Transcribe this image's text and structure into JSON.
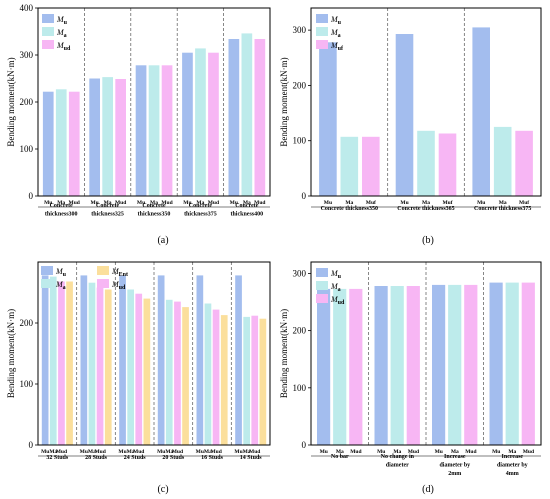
{
  "colors": {
    "Mu": "#a3bdee",
    "Ma": "#bdebeb",
    "Mud": "#f7b6f4",
    "Mud_c": "#f7b6f4",
    "MEnt": "#fbdf9c"
  },
  "chart_data": [
    {
      "type": "bar",
      "caption": "(a)",
      "ylabel": "Bending moment(kN·m)",
      "ylim": [
        0,
        400
      ],
      "yticks": [
        0,
        100,
        200,
        300,
        400
      ],
      "legend": [
        {
          "key": "Mu",
          "base": "M",
          "sub": "u"
        },
        {
          "key": "Ma",
          "base": "M",
          "sub": "a"
        },
        {
          "key": "Mud",
          "base": "M",
          "sub": "ud"
        }
      ],
      "legend_columns": 1,
      "groups": [
        {
          "label": [
            "Concrete",
            "thickness300"
          ],
          "bars": [
            {
              "key": "Mu",
              "tick": "Mu",
              "value": 222
            },
            {
              "key": "Ma",
              "tick": "Ma",
              "value": 227
            },
            {
              "key": "Mud",
              "tick": "Mud",
              "value": 222
            }
          ]
        },
        {
          "label": [
            "Concrete",
            "thickness325"
          ],
          "bars": [
            {
              "key": "Mu",
              "tick": "Mu",
              "value": 250
            },
            {
              "key": "Ma",
              "tick": "Ma",
              "value": 253
            },
            {
              "key": "Mud",
              "tick": "Mud",
              "value": 249
            }
          ]
        },
        {
          "label": [
            "Concrete",
            "thickness350"
          ],
          "bars": [
            {
              "key": "Mu",
              "tick": "Mu",
              "value": 278
            },
            {
              "key": "Ma",
              "tick": "Ma",
              "value": 278
            },
            {
              "key": "Mud",
              "tick": "Mud",
              "value": 278
            }
          ]
        },
        {
          "label": [
            "Concrete",
            "thickness375"
          ],
          "bars": [
            {
              "key": "Mu",
              "tick": "Mu",
              "value": 305
            },
            {
              "key": "Ma",
              "tick": "Ma",
              "value": 314
            },
            {
              "key": "Mud",
              "tick": "Mud",
              "value": 305
            }
          ]
        },
        {
          "label": [
            "Concrete",
            "thickness400"
          ],
          "bars": [
            {
              "key": "Mu",
              "tick": "Mu",
              "value": 334
            },
            {
              "key": "Ma",
              "tick": "Ma",
              "value": 346
            },
            {
              "key": "Mud",
              "tick": "Mud",
              "value": 334
            }
          ]
        }
      ]
    },
    {
      "type": "bar",
      "caption": "(b)",
      "ylabel": "Bending moment(kN·m)",
      "ylim": [
        0,
        340
      ],
      "yticks": [
        0,
        100,
        200,
        300
      ],
      "legend": [
        {
          "key": "Mu",
          "base": "M",
          "sub": "u"
        },
        {
          "key": "Ma",
          "base": "M",
          "sub": "a"
        },
        {
          "key": "Mud",
          "base": "M",
          "sub": "uf"
        }
      ],
      "legend_columns": 1,
      "groups": [
        {
          "label": [
            "Concrete thickness350"
          ],
          "bars": [
            {
              "key": "Mu",
              "tick": "Mu",
              "value": 278
            },
            {
              "key": "Ma",
              "tick": "Ma",
              "value": 107
            },
            {
              "key": "Mud",
              "tick": "Muf",
              "value": 107
            }
          ]
        },
        {
          "label": [
            "Concrete thickness365"
          ],
          "bars": [
            {
              "key": "Mu",
              "tick": "Mu",
              "value": 293
            },
            {
              "key": "Ma",
              "tick": "Ma",
              "value": 118
            },
            {
              "key": "Mud",
              "tick": "Muf",
              "value": 113
            }
          ]
        },
        {
          "label": [
            "Concrete thickness375"
          ],
          "bars": [
            {
              "key": "Mu",
              "tick": "Mu",
              "value": 305
            },
            {
              "key": "Ma",
              "tick": "Ma",
              "value": 125
            },
            {
              "key": "Mud",
              "tick": "Muf",
              "value": 118
            }
          ]
        }
      ]
    },
    {
      "type": "bar",
      "caption": "(c)",
      "ylabel": "Bending moment(kN·m)",
      "ylim": [
        0,
        300
      ],
      "yticks": [
        0,
        100,
        200
      ],
      "legend": [
        {
          "key": "Mu",
          "base": "M",
          "sub": "u"
        },
        {
          "key": "MEnt",
          "base": "M",
          "sub": "Ent"
        },
        {
          "key": "Ma",
          "base": "M",
          "sub": "a"
        },
        {
          "key": "Mud",
          "base": "M",
          "sub": "ud"
        }
      ],
      "legend_columns": 2,
      "groups": [
        {
          "label": [
            "32 Studs"
          ],
          "bars": [
            {
              "key": "Mu",
              "tick": "Mu",
              "value": 278
            },
            {
              "key": "Ma",
              "tick": "Ma",
              "value": 276
            },
            {
              "key": "Mud",
              "tick": "Mud",
              "value": 268
            },
            {
              "key": "MEnt",
              "tick": "",
              "value": 268
            }
          ]
        },
        {
          "label": [
            "28 Studs"
          ],
          "bars": [
            {
              "key": "Mu",
              "tick": "Mu",
              "value": 278
            },
            {
              "key": "Ma",
              "tick": "Ma",
              "value": 266
            },
            {
              "key": "Mud",
              "tick": "Mud",
              "value": 258
            },
            {
              "key": "MEnt",
              "tick": "",
              "value": 255
            }
          ]
        },
        {
          "label": [
            "24 Studs"
          ],
          "bars": [
            {
              "key": "Mu",
              "tick": "Mu",
              "value": 278
            },
            {
              "key": "Ma",
              "tick": "Ma",
              "value": 255
            },
            {
              "key": "Mud",
              "tick": "Mud",
              "value": 248
            },
            {
              "key": "MEnt",
              "tick": "",
              "value": 240
            }
          ]
        },
        {
          "label": [
            "20 Studs"
          ],
          "bars": [
            {
              "key": "Mu",
              "tick": "Mu",
              "value": 278
            },
            {
              "key": "Ma",
              "tick": "Ma",
              "value": 238
            },
            {
              "key": "Mud",
              "tick": "Mud",
              "value": 235
            },
            {
              "key": "MEnt",
              "tick": "",
              "value": 226
            }
          ]
        },
        {
          "label": [
            "16 Studs"
          ],
          "bars": [
            {
              "key": "Mu",
              "tick": "Mu",
              "value": 278
            },
            {
              "key": "Ma",
              "tick": "Ma",
              "value": 232
            },
            {
              "key": "Mud",
              "tick": "Mud",
              "value": 222
            },
            {
              "key": "MEnt",
              "tick": "",
              "value": 213
            }
          ]
        },
        {
          "label": [
            "14 Studs"
          ],
          "bars": [
            {
              "key": "Mu",
              "tick": "Mu",
              "value": 278
            },
            {
              "key": "Ma",
              "tick": "Ma",
              "value": 210
            },
            {
              "key": "Mud",
              "tick": "Mud",
              "value": 212
            },
            {
              "key": "MEnt",
              "tick": "",
              "value": 207
            }
          ]
        }
      ]
    },
    {
      "type": "bar",
      "caption": "(d)",
      "ylabel": "Bending moment(kN·m)",
      "ylim": [
        0,
        320
      ],
      "yticks": [
        0,
        100,
        200,
        300
      ],
      "legend": [
        {
          "key": "Mu",
          "base": "M",
          "sub": "u"
        },
        {
          "key": "Ma",
          "base": "M",
          "sub": "a"
        },
        {
          "key": "Mud",
          "base": "M",
          "sub": "ud"
        }
      ],
      "legend_columns": 1,
      "groups": [
        {
          "label": [
            "No bar"
          ],
          "bars": [
            {
              "key": "Mu",
              "tick": "Mu",
              "value": 273
            },
            {
              "key": "Ma",
              "tick": "Ma",
              "value": 273
            },
            {
              "key": "Mud",
              "tick": "Mud",
              "value": 273
            }
          ]
        },
        {
          "label": [
            "No change in",
            "diameter"
          ],
          "bars": [
            {
              "key": "Mu",
              "tick": "Mu",
              "value": 278
            },
            {
              "key": "Ma",
              "tick": "Ma",
              "value": 278
            },
            {
              "key": "Mud",
              "tick": "Mud",
              "value": 278
            }
          ]
        },
        {
          "label": [
            "Increase",
            "diameter by",
            "2mm"
          ],
          "bars": [
            {
              "key": "Mu",
              "tick": "Mu",
              "value": 280
            },
            {
              "key": "Ma",
              "tick": "Ma",
              "value": 280
            },
            {
              "key": "Mud",
              "tick": "Mud",
              "value": 280
            }
          ]
        },
        {
          "label": [
            "Increase",
            "diameter by",
            "4mm"
          ],
          "bars": [
            {
              "key": "Mu",
              "tick": "Mu",
              "value": 284
            },
            {
              "key": "Ma",
              "tick": "Ma",
              "value": 284
            },
            {
              "key": "Mud",
              "tick": "Mud",
              "value": 284
            }
          ]
        }
      ]
    }
  ]
}
